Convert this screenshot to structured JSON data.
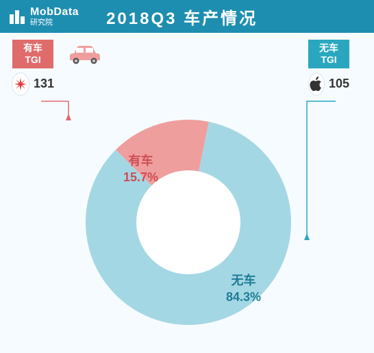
{
  "header": {
    "brand_main": "MobData",
    "brand_sub": "研究院",
    "title": "2018Q3   车产情况"
  },
  "tgi": {
    "left": {
      "label_line1": "有车",
      "label_line2": "TGI",
      "brand": "huawei",
      "value": "131",
      "badge_color": "#e06b6b"
    },
    "right": {
      "label_line1": "无车",
      "label_line2": "TGI",
      "brand": "apple",
      "value": "105",
      "badge_color": "#2aa7bf"
    }
  },
  "chart": {
    "type": "donut",
    "inner_radius_ratio": 0.51,
    "start_angle_deg": 225,
    "slices": [
      {
        "key": "has_car",
        "name": "有车",
        "value": 15.7,
        "pct_label": "15.7%",
        "color": "#ef9e9e",
        "label_color": "#cc4e55"
      },
      {
        "key": "no_car",
        "name": "无车",
        "value": 84.3,
        "pct_label": "84.3%",
        "color": "#a4d7e4",
        "label_color": "#1f7d95"
      }
    ],
    "background_color": "#f6fbff",
    "leader_colors": {
      "has_car": "#e06b6b",
      "no_car": "#2aa7bf"
    },
    "title_fontsize": 24,
    "label_fontsize": 18
  }
}
